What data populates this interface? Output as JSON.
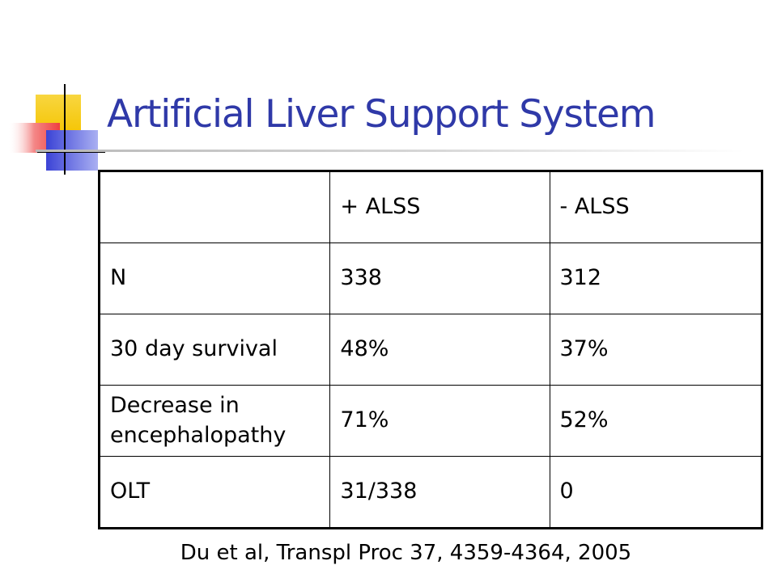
{
  "slide": {
    "title": "Artificial Liver Support System",
    "citation": "Du et al, Transpl Proc 37, 4359-4364, 2005"
  },
  "table": {
    "header": [
      "",
      "+ ALSS",
      "- ALSS"
    ],
    "rows": [
      [
        "N",
        "338",
        "312"
      ],
      [
        "30 day survival",
        "48%",
        "37%"
      ],
      [
        "Decrease in encephalopathy",
        "71%",
        "52%"
      ],
      [
        "OLT",
        "31/338",
        "0"
      ]
    ]
  },
  "colors": {
    "title": "#2f39a8",
    "accent_yellow": "#f5c800",
    "accent_red": "#f0504c",
    "accent_blue": "#3b43d6"
  }
}
